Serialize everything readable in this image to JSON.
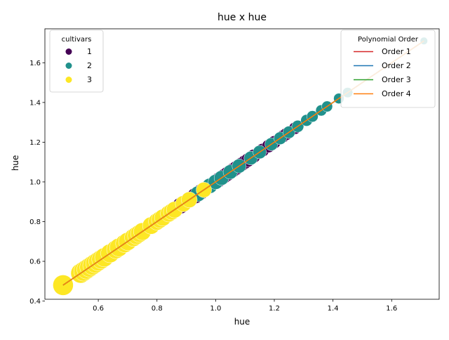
{
  "chart_data": {
    "type": "scatter",
    "title": "hue x hue",
    "xlabel": "hue",
    "ylabel": "hue",
    "xlim": [
      0.418,
      1.762
    ],
    "ylim": [
      0.409,
      1.771
    ],
    "xticks": [
      0.6,
      0.8,
      1.0,
      1.2,
      1.4,
      1.6
    ],
    "xtick_labels": [
      "0.6",
      "0.8",
      "1.0",
      "1.2",
      "1.4",
      "1.6"
    ],
    "yticks": [
      0.4,
      0.6,
      0.8,
      1.0,
      1.2,
      1.4,
      1.6
    ],
    "ytick_labels": [
      "0.4",
      "0.6",
      "0.8",
      "1.0",
      "1.2",
      "1.4",
      "1.6"
    ],
    "grid": false,
    "series": [
      {
        "name": "1",
        "color": "#440154",
        "x": [
          0.86,
          0.88,
          0.89,
          0.91,
          0.93,
          0.95,
          1.01,
          1.02,
          1.03,
          1.04,
          1.05,
          1.06,
          1.07,
          1.08,
          1.09,
          1.1,
          1.11,
          1.12,
          1.13,
          1.15,
          1.16,
          1.18,
          1.19,
          1.2,
          1.22,
          1.23,
          1.24,
          1.25,
          1.27,
          1.28
        ],
        "y": [
          0.86,
          0.88,
          0.89,
          0.91,
          0.93,
          0.95,
          1.01,
          1.02,
          1.03,
          1.04,
          1.05,
          1.06,
          1.07,
          1.08,
          1.09,
          1.1,
          1.11,
          1.12,
          1.13,
          1.15,
          1.16,
          1.18,
          1.19,
          1.2,
          1.22,
          1.23,
          1.24,
          1.25,
          1.27,
          1.28
        ]
      },
      {
        "name": "2",
        "color": "#21918c",
        "x": [
          0.94,
          0.96,
          0.98,
          1.0,
          1.02,
          1.05,
          1.08,
          1.12,
          1.15,
          1.19,
          1.22,
          1.25,
          1.28,
          1.31,
          1.33,
          1.36,
          1.38,
          1.42,
          1.45,
          1.71
        ],
        "y": [
          0.94,
          0.96,
          0.98,
          1.0,
          1.02,
          1.05,
          1.08,
          1.12,
          1.15,
          1.19,
          1.22,
          1.25,
          1.28,
          1.31,
          1.33,
          1.36,
          1.38,
          1.42,
          1.45,
          1.71
        ]
      },
      {
        "name": "3",
        "color": "#fde725",
        "x": [
          0.48,
          0.54,
          0.55,
          0.56,
          0.57,
          0.58,
          0.59,
          0.6,
          0.61,
          0.62,
          0.64,
          0.66,
          0.67,
          0.69,
          0.7,
          0.72,
          0.73,
          0.74,
          0.75,
          0.78,
          0.8,
          0.81,
          0.82,
          0.84,
          0.85,
          0.86,
          0.89,
          0.91,
          0.96
        ],
        "y": [
          0.48,
          0.54,
          0.55,
          0.56,
          0.57,
          0.58,
          0.59,
          0.6,
          0.61,
          0.62,
          0.64,
          0.66,
          0.67,
          0.69,
          0.7,
          0.72,
          0.73,
          0.74,
          0.75,
          0.78,
          0.8,
          0.81,
          0.82,
          0.84,
          0.85,
          0.86,
          0.89,
          0.91,
          0.96
        ]
      }
    ],
    "fit_lines": [
      {
        "name": "Order 1",
        "color": "#d62728",
        "x": [
          0.48,
          1.71
        ],
        "y": [
          0.48,
          1.71
        ]
      },
      {
        "name": "Order 2",
        "color": "#1f77b4",
        "x": [
          0.48,
          1.71
        ],
        "y": [
          0.48,
          1.71
        ]
      },
      {
        "name": "Order 3",
        "color": "#2ca02c",
        "x": [
          0.48,
          1.71
        ],
        "y": [
          0.48,
          1.71
        ]
      },
      {
        "name": "Order 4",
        "color": "#ff7f0e",
        "x": [
          0.48,
          1.71
        ],
        "y": [
          0.48,
          1.71
        ]
      }
    ],
    "legend_cultivars": {
      "title": "cultivars",
      "placement": "top-left",
      "entries": [
        {
          "label": "1",
          "color": "#440154"
        },
        {
          "label": "2",
          "color": "#21918c"
        },
        {
          "label": "3",
          "color": "#fde725"
        }
      ]
    },
    "legend_order": {
      "title": "Polynomial Order",
      "placement": "top-right",
      "entries": [
        {
          "label": "Order 1",
          "color": "#d62728"
        },
        {
          "label": "Order 2",
          "color": "#1f77b4"
        },
        {
          "label": "Order 3",
          "color": "#2ca02c"
        },
        {
          "label": "Order 4",
          "color": "#ff7f0e"
        }
      ]
    }
  }
}
